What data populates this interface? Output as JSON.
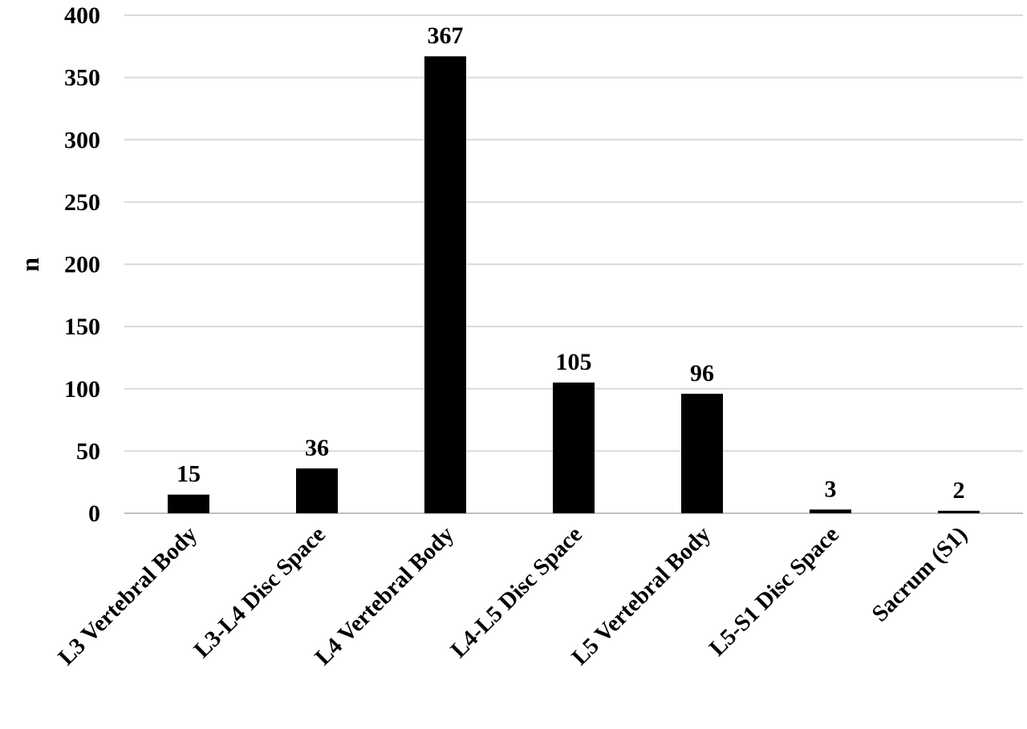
{
  "chart_data": {
    "type": "bar",
    "categories": [
      "L3 Vertebral Body",
      "L3-L4 Disc Space",
      "L4 Vertebral Body",
      "L4-L5 Disc Space",
      "L5 Vertebral Body",
      "L5-S1 Disc Space",
      "Sacrum (S1)"
    ],
    "values": [
      15,
      36,
      367,
      105,
      96,
      3,
      2
    ],
    "data_labels": [
      "15",
      "36",
      "367",
      "105",
      "96",
      "3",
      "2"
    ],
    "title": "",
    "xlabel": "",
    "ylabel": "n",
    "ylim": [
      0,
      400
    ],
    "yticks": [
      "0",
      "50",
      "100",
      "150",
      "200",
      "250",
      "300",
      "350",
      "400"
    ],
    "grid": true,
    "legend": "none",
    "colors": {
      "bar": "#000000",
      "grid": "#d9d9d9",
      "axis": "#bfbfbf"
    }
  }
}
